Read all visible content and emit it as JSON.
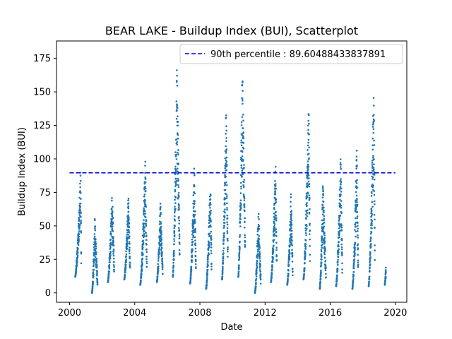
{
  "chart_data": {
    "type": "scatter",
    "title": "BEAR LAKE - Buildup Index (BUI), Scatterplot",
    "xlabel": "Date",
    "ylabel": "Buildup Index (BUI)",
    "xlim": [
      1999.2,
      2020.7
    ],
    "ylim": [
      -7,
      188
    ],
    "xticks": [
      2000,
      2004,
      2008,
      2012,
      2016,
      2020
    ],
    "yticks": [
      0,
      25,
      50,
      75,
      100,
      125,
      150,
      175
    ],
    "marker_color": "#1f77b4",
    "reference_line": {
      "label": "90th percentile : 89.60488433837891",
      "value": 89.60488433837891,
      "x_range": [
        2000,
        2020
      ],
      "color": "#0000cc",
      "style": "dashed"
    },
    "legend_position": "upper right",
    "seasons": [
      {
        "year": 2000,
        "start": 0.35,
        "end": 0.72,
        "low": 12,
        "peak": 94,
        "rise": 0.9
      },
      {
        "year": 2001,
        "start": 0.38,
        "end": 0.72,
        "low": 0,
        "peak": 55,
        "rise": 0.5
      },
      {
        "year": 2002,
        "start": 0.35,
        "end": 0.74,
        "low": 8,
        "peak": 78,
        "rise": 0.7
      },
      {
        "year": 2003,
        "start": 0.36,
        "end": 0.72,
        "low": 10,
        "peak": 75,
        "rise": 0.7
      },
      {
        "year": 2004,
        "start": 0.34,
        "end": 0.75,
        "low": 6,
        "peak": 99,
        "rise": 0.75
      },
      {
        "year": 2005,
        "start": 0.36,
        "end": 0.72,
        "low": 8,
        "peak": 67,
        "rise": 0.6
      },
      {
        "year": 2006,
        "start": 0.34,
        "end": 0.76,
        "low": 12,
        "peak": 173,
        "rise": 0.6
      },
      {
        "year": 2007,
        "start": 0.4,
        "end": 0.76,
        "low": 7,
        "peak": 96,
        "rise": 0.7
      },
      {
        "year": 2008,
        "start": 0.38,
        "end": 0.72,
        "low": 3,
        "peak": 90,
        "rise": 0.8
      },
      {
        "year": 2009,
        "start": 0.36,
        "end": 0.72,
        "low": 10,
        "peak": 142,
        "rise": 0.7
      },
      {
        "year": 2010,
        "start": 0.36,
        "end": 0.78,
        "low": 12,
        "peak": 171,
        "rise": 0.6
      },
      {
        "year": 2011,
        "start": 0.38,
        "end": 0.74,
        "low": 0,
        "peak": 65,
        "rise": 0.6
      },
      {
        "year": 2012,
        "start": 0.36,
        "end": 0.72,
        "low": 8,
        "peak": 100,
        "rise": 0.8
      },
      {
        "year": 2013,
        "start": 0.36,
        "end": 0.7,
        "low": 6,
        "peak": 78,
        "rise": 0.7
      },
      {
        "year": 2014,
        "start": 0.36,
        "end": 0.76,
        "low": 10,
        "peak": 147,
        "rise": 0.8
      },
      {
        "year": 2015,
        "start": 0.36,
        "end": 0.74,
        "low": 3,
        "peak": 82,
        "rise": 0.5
      },
      {
        "year": 2016,
        "start": 0.36,
        "end": 0.74,
        "low": 5,
        "peak": 104,
        "rise": 0.75
      },
      {
        "year": 2017,
        "start": 0.36,
        "end": 0.72,
        "low": 3,
        "peak": 108,
        "rise": 0.75
      },
      {
        "year": 2018,
        "start": 0.36,
        "end": 0.74,
        "low": 5,
        "peak": 164,
        "rise": 0.85
      },
      {
        "year": 2019,
        "start": 0.35,
        "end": 0.42,
        "low": 6,
        "peak": 20,
        "rise": 0.9
      }
    ]
  }
}
